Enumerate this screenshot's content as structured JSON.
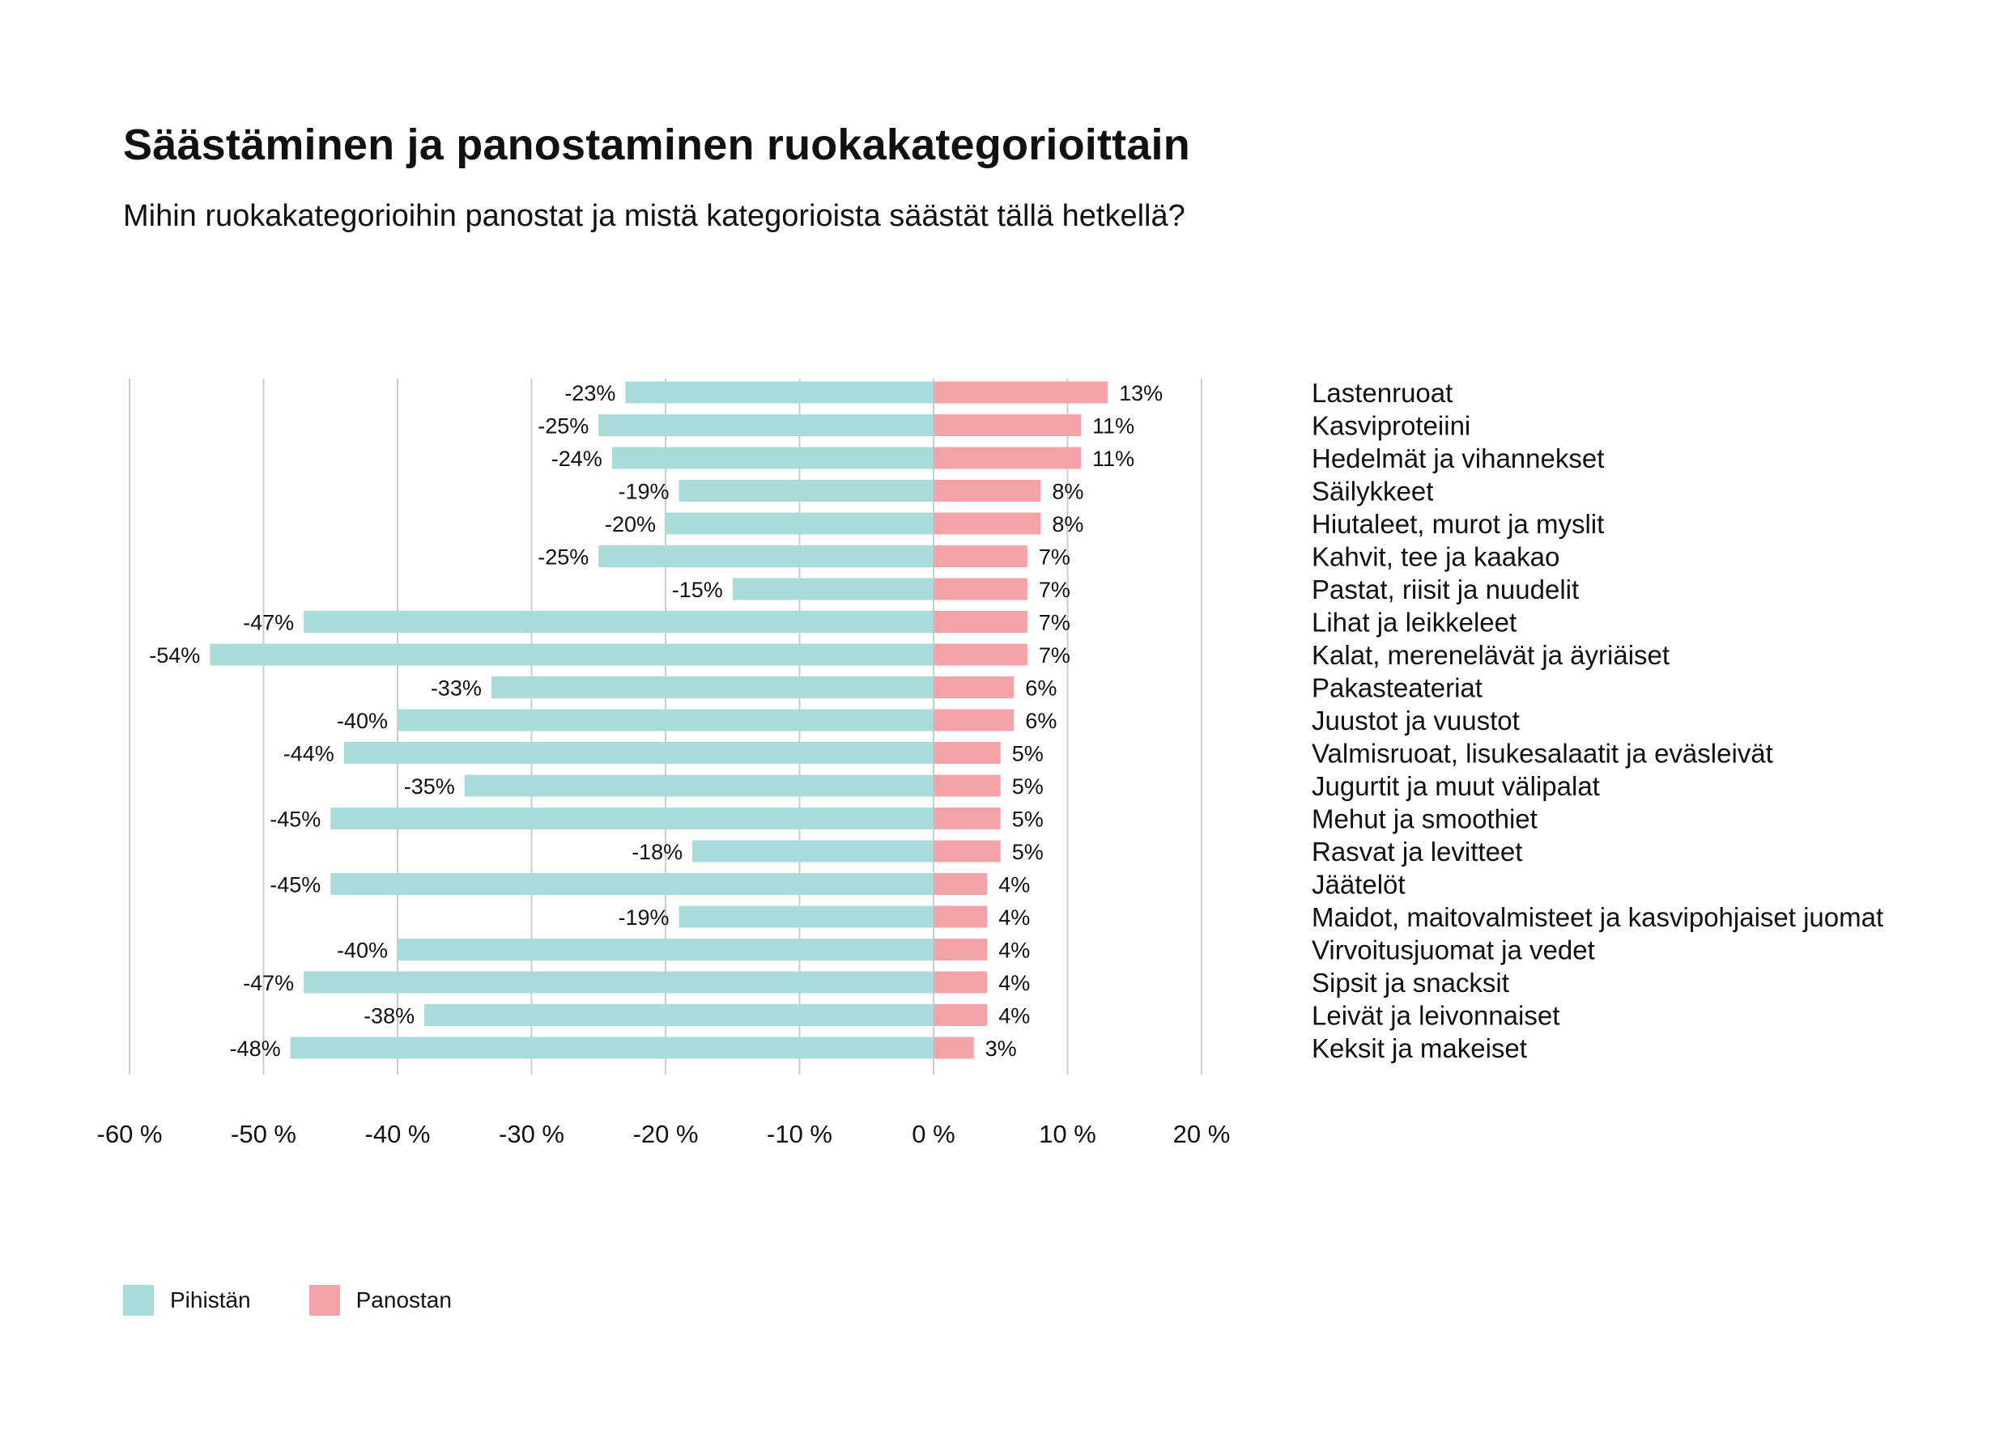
{
  "title": "Säästäminen ja panostaminen ruokakategorioittain",
  "subtitle": "Mihin ruokakategorioihin panostat ja mistä kategorioista säästät tällä hetkellä?",
  "colors": {
    "save": "#a9dbd9",
    "invest": "#f4a3a8",
    "grid": "#cccccc"
  },
  "legend": [
    {
      "label": "Pihistän",
      "color": "#a9dbd9"
    },
    {
      "label": "Panostan",
      "color": "#f4a3a8"
    }
  ],
  "chart_data": {
    "type": "bar",
    "orientation": "horizontal",
    "stacking": "diverging",
    "xlim": [
      -60,
      20
    ],
    "x_ticks": [
      -60,
      -50,
      -40,
      -30,
      -20,
      -10,
      0,
      10,
      20
    ],
    "x_tick_labels": [
      "-60 %",
      "-50 %",
      "-40 %",
      "-30 %",
      "-20 %",
      "-10 %",
      "0 %",
      "10 %",
      "20 %"
    ],
    "grid": true,
    "legend_position": "bottom-left",
    "categories": [
      "Lastenruoat",
      "Kasviproteiini",
      "Hedelmät ja vihannekset",
      "Säilykkeet",
      "Hiutaleet, murot ja myslit",
      "Kahvit, tee ja kaakao",
      "Pastat, riisit ja nuudelit",
      "Lihat ja leikkeleet",
      "Kalat, merenelävät ja äyriäiset",
      "Pakasteateriat",
      "Juustot ja vuustot",
      "Valmisruoat, lisukesalaatit ja eväsleivät",
      "Jugurtit ja muut välipalat",
      "Mehut ja smoothiet",
      "Rasvat ja levitteet",
      "Jäätelöt",
      "Maidot, maitovalmisteet ja kasvipohjaiset juomat",
      "Virvoitusjuomat ja vedet",
      "Sipsit ja snacksit",
      "Leivät ja leivonnaiset",
      "Keksit ja makeiset"
    ],
    "series": [
      {
        "name": "Pihistän",
        "values": [
          -23,
          -25,
          -24,
          -19,
          -20,
          -25,
          -15,
          -47,
          -54,
          -33,
          -40,
          -44,
          -35,
          -45,
          -18,
          -45,
          -19,
          -40,
          -47,
          -38,
          -48
        ],
        "labels": [
          "-23%",
          "-25%",
          "-24%",
          "-19%",
          "-20%",
          "-25%",
          "-15%",
          "-47%",
          "-54%",
          "-33%",
          "-40%",
          "-44%",
          "-35%",
          "-45%",
          "-18%",
          "-45%",
          "-19%",
          "-40%",
          "-47%",
          "-38%",
          "-48%"
        ]
      },
      {
        "name": "Panostan",
        "values": [
          13,
          11,
          11,
          8,
          8,
          7,
          7,
          7,
          7,
          6,
          6,
          5,
          5,
          5,
          5,
          4,
          4,
          4,
          4,
          4,
          3
        ],
        "labels": [
          "13%",
          "11%",
          "11%",
          "8%",
          "8%",
          "7%",
          "7%",
          "7%",
          "7%",
          "6%",
          "6%",
          "5%",
          "5%",
          "5%",
          "5%",
          "4%",
          "4%",
          "4%",
          "4%",
          "4%",
          "3%"
        ]
      }
    ]
  }
}
